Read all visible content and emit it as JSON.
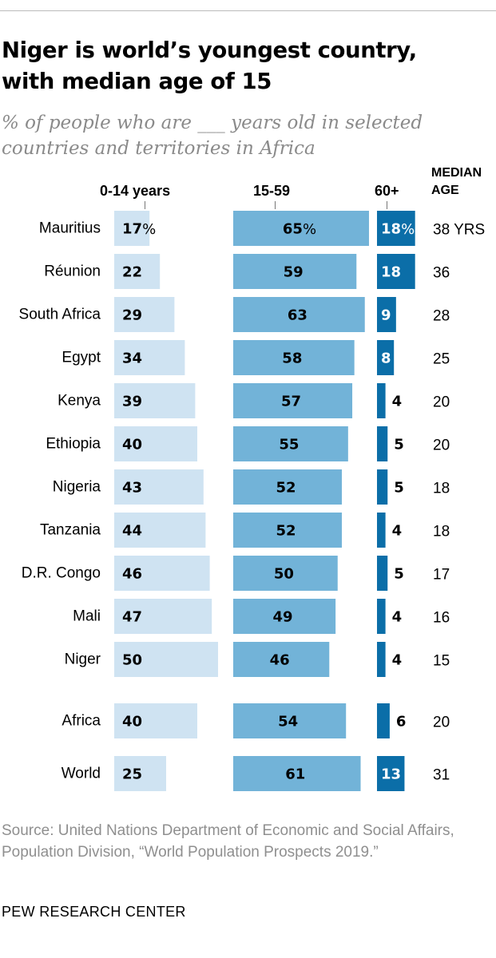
{
  "title": "Niger is world’s youngest country,\nwith median age of 15",
  "subtitle": "% of people who are ___ years old in selected\ncountries and territories in Africa",
  "source": "Source: United Nations Department of Economic and Social Affairs, Population Division, “World Population Prospects 2019.”",
  "footer": "PEW RESEARCH CENTER",
  "colors": {
    "age_0_14": "#cfe3f2",
    "age_15_59": "#72b3d8",
    "age_60_plus": "#0b6ea8",
    "text_on_dark": "#ffffff",
    "text": "#000000"
  },
  "chart_data": {
    "type": "bar",
    "headers": {
      "age_0_14": "0-14 years",
      "age_15_59": "15-59",
      "age_60_plus": "60+",
      "median_line1": "MEDIAN",
      "median_line2": "AGE"
    },
    "categories": [
      "Mauritius",
      "Réunion",
      "South Africa",
      "Egypt",
      "Kenya",
      "Ethiopia",
      "Nigeria",
      "Tanzania",
      "D.R. Congo",
      "Mali",
      "Niger",
      "Africa",
      "World"
    ],
    "series": [
      {
        "name": "0-14 years",
        "values": [
          17,
          22,
          29,
          34,
          39,
          40,
          43,
          44,
          46,
          47,
          50,
          40,
          25
        ]
      },
      {
        "name": "15-59",
        "values": [
          65,
          59,
          63,
          58,
          57,
          55,
          52,
          52,
          50,
          49,
          46,
          54,
          61
        ]
      },
      {
        "name": "60+",
        "values": [
          18,
          18,
          9,
          8,
          4,
          5,
          5,
          4,
          5,
          4,
          4,
          6,
          13
        ]
      }
    ],
    "median_age": [
      38,
      36,
      28,
      25,
      20,
      20,
      18,
      18,
      17,
      16,
      15,
      20,
      31
    ],
    "median_unit_first_row": "YRS",
    "percent_sign": "%"
  }
}
